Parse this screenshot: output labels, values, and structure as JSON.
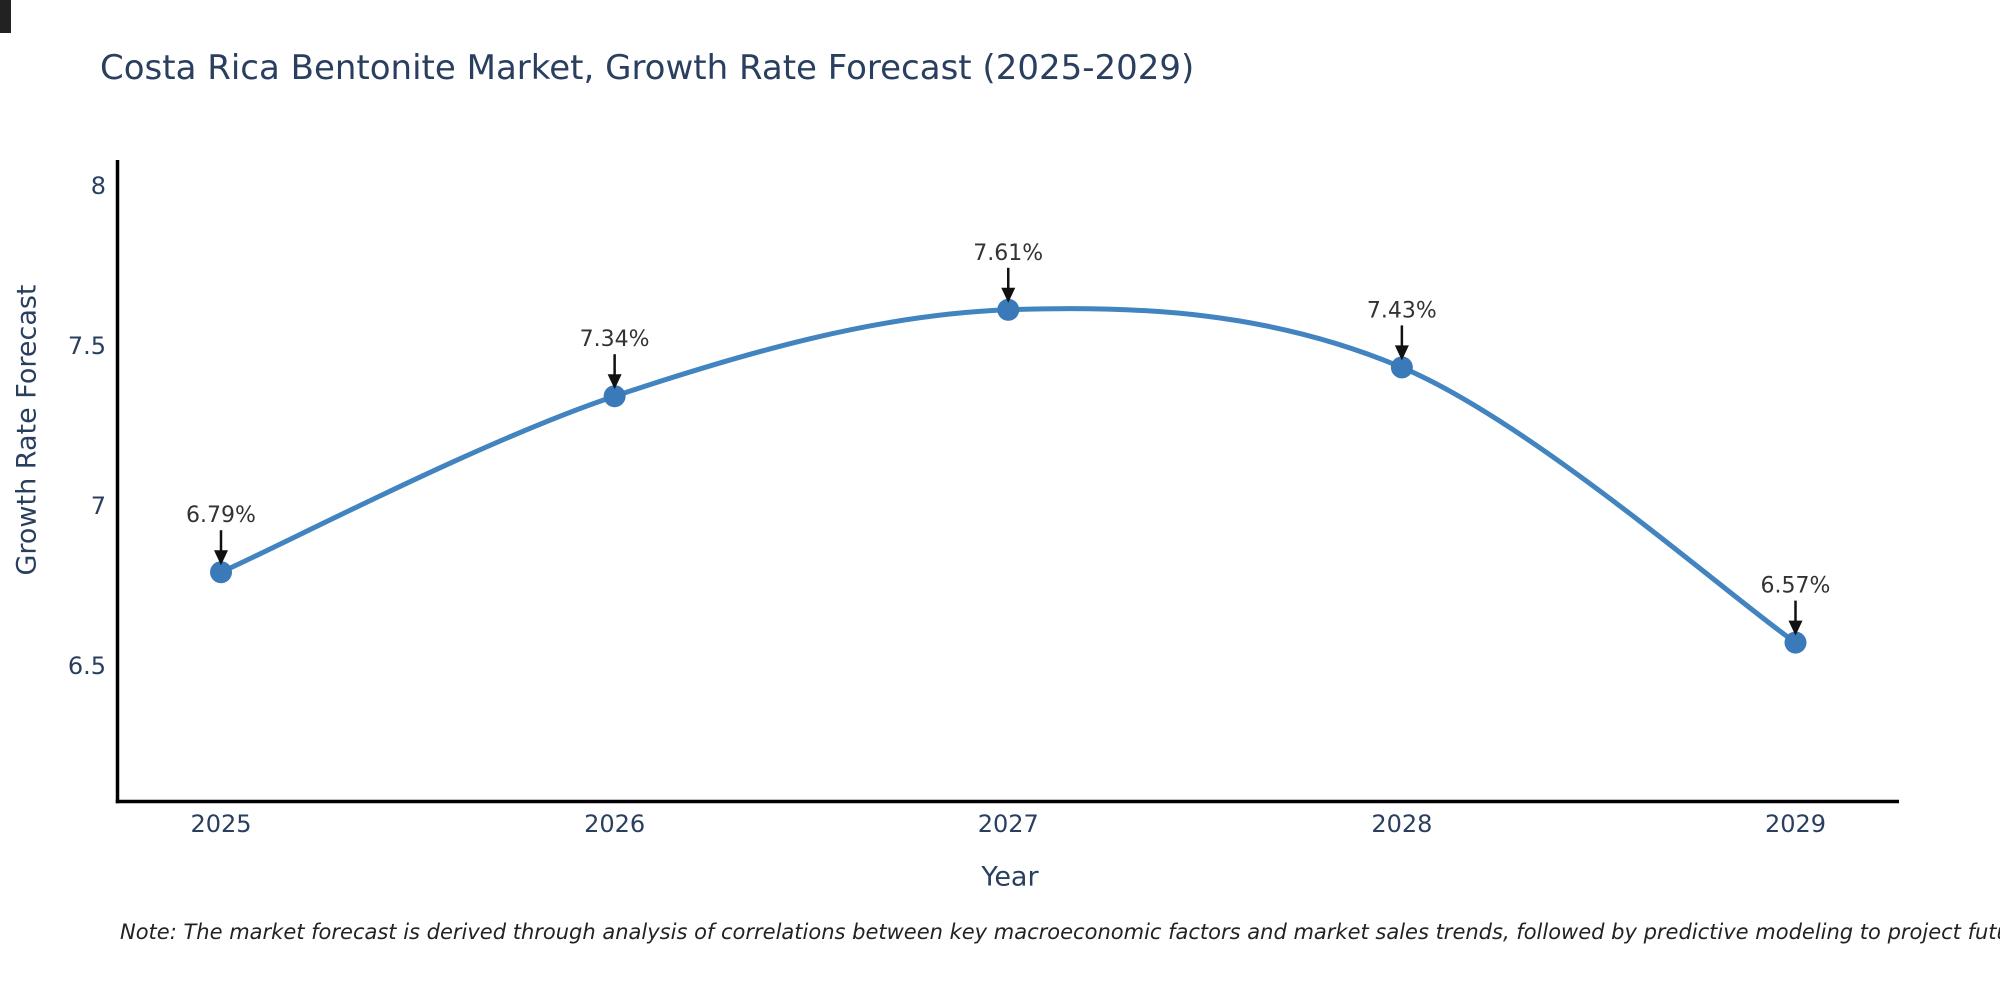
{
  "title": "Costa Rica Bentonite Market, Growth Rate Forecast (2025-2029)",
  "note": "Note: The market forecast is derived through analysis of correlations between key macroeconomic factors and market sales trends, followed by predictive modeling to project future sales",
  "chart_data": {
    "type": "line",
    "title": "Costa Rica Bentonite Market, Growth Rate Forecast (2025-2029)",
    "x": [
      "2025",
      "2026",
      "2027",
      "2028",
      "2029"
    ],
    "values": [
      6.79,
      7.34,
      7.61,
      7.43,
      6.57
    ],
    "point_labels": [
      "6.79%",
      "7.34%",
      "7.61%",
      "7.43%",
      "6.57%"
    ],
    "xlabel": "Year",
    "ylabel": "Growth Rate Forecast",
    "yticks": [
      6.5,
      7,
      7.5,
      8
    ],
    "ylim": [
      6.08,
      8.08
    ],
    "line_shape": "spline",
    "grid": false,
    "legend": "none",
    "colors": {
      "line": "#4184bf",
      "marker": "#3a7ab8",
      "axis": "#000000",
      "tick_text": "#2a3f5f",
      "annotation_text": "#333333",
      "annotation_arrow": "#111111"
    }
  }
}
